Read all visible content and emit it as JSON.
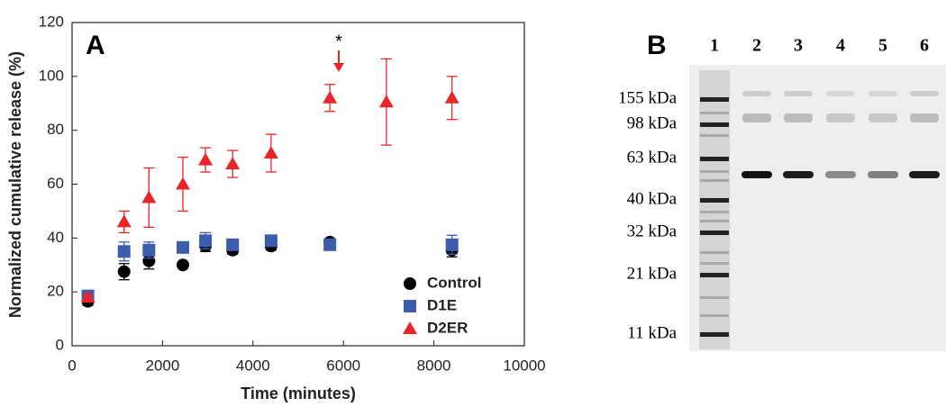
{
  "chart_data": {
    "type": "scatter",
    "panel_label": "A",
    "xlabel": "Time (minutes)",
    "ylabel": "Normalized cumulative release (%)",
    "xlim": [
      0,
      10000
    ],
    "xticks": [
      0,
      2000,
      4000,
      6000,
      8000,
      10000
    ],
    "ylim": [
      0,
      120
    ],
    "yticks": [
      0,
      20,
      40,
      60,
      80,
      100,
      120
    ],
    "legend": "lower right",
    "annotation": "*",
    "series": [
      {
        "name": "Control",
        "color": "#000000",
        "marker": "circle",
        "x": [
          350,
          1150,
          1700,
          2450,
          2950,
          3550,
          4400,
          5700,
          8400
        ],
        "values": [
          16.5,
          27.5,
          31.5,
          30,
          37,
          35.5,
          37,
          38.5,
          35.5
        ],
        "errors": [
          1.5,
          3,
          3,
          1,
          2,
          1.5,
          1.5,
          1,
          2.5
        ]
      },
      {
        "name": "D1E",
        "color": "#3b5dab",
        "marker": "square",
        "x": [
          350,
          1150,
          1700,
          2450,
          2950,
          3550,
          4400,
          5700,
          8400
        ],
        "values": [
          18.5,
          35,
          35.5,
          36.5,
          39,
          37.5,
          39,
          37.5,
          37.5
        ],
        "errors": [
          1,
          3.5,
          3,
          1.5,
          3,
          2,
          2,
          1,
          3.5
        ]
      },
      {
        "name": "D2ER",
        "color": "#e8262a",
        "marker": "triangle",
        "x": [
          350,
          1150,
          1700,
          2450,
          2950,
          3550,
          4400,
          5700,
          6950,
          8400
        ],
        "values": [
          18,
          46,
          55,
          60,
          69,
          67.5,
          71.5,
          92,
          90.5,
          92
        ],
        "errors": [
          1,
          4,
          11,
          10,
          4.5,
          5,
          7,
          5,
          16,
          8
        ]
      }
    ]
  },
  "gel": {
    "panel_label": "B",
    "lanes": [
      "1",
      "2",
      "3",
      "4",
      "5",
      "6"
    ],
    "markers": [
      "155 kDa",
      "98 kDa",
      "63 kDa",
      "40 kDa",
      "32 kDa",
      "21 kDa",
      "11 kDa"
    ]
  }
}
